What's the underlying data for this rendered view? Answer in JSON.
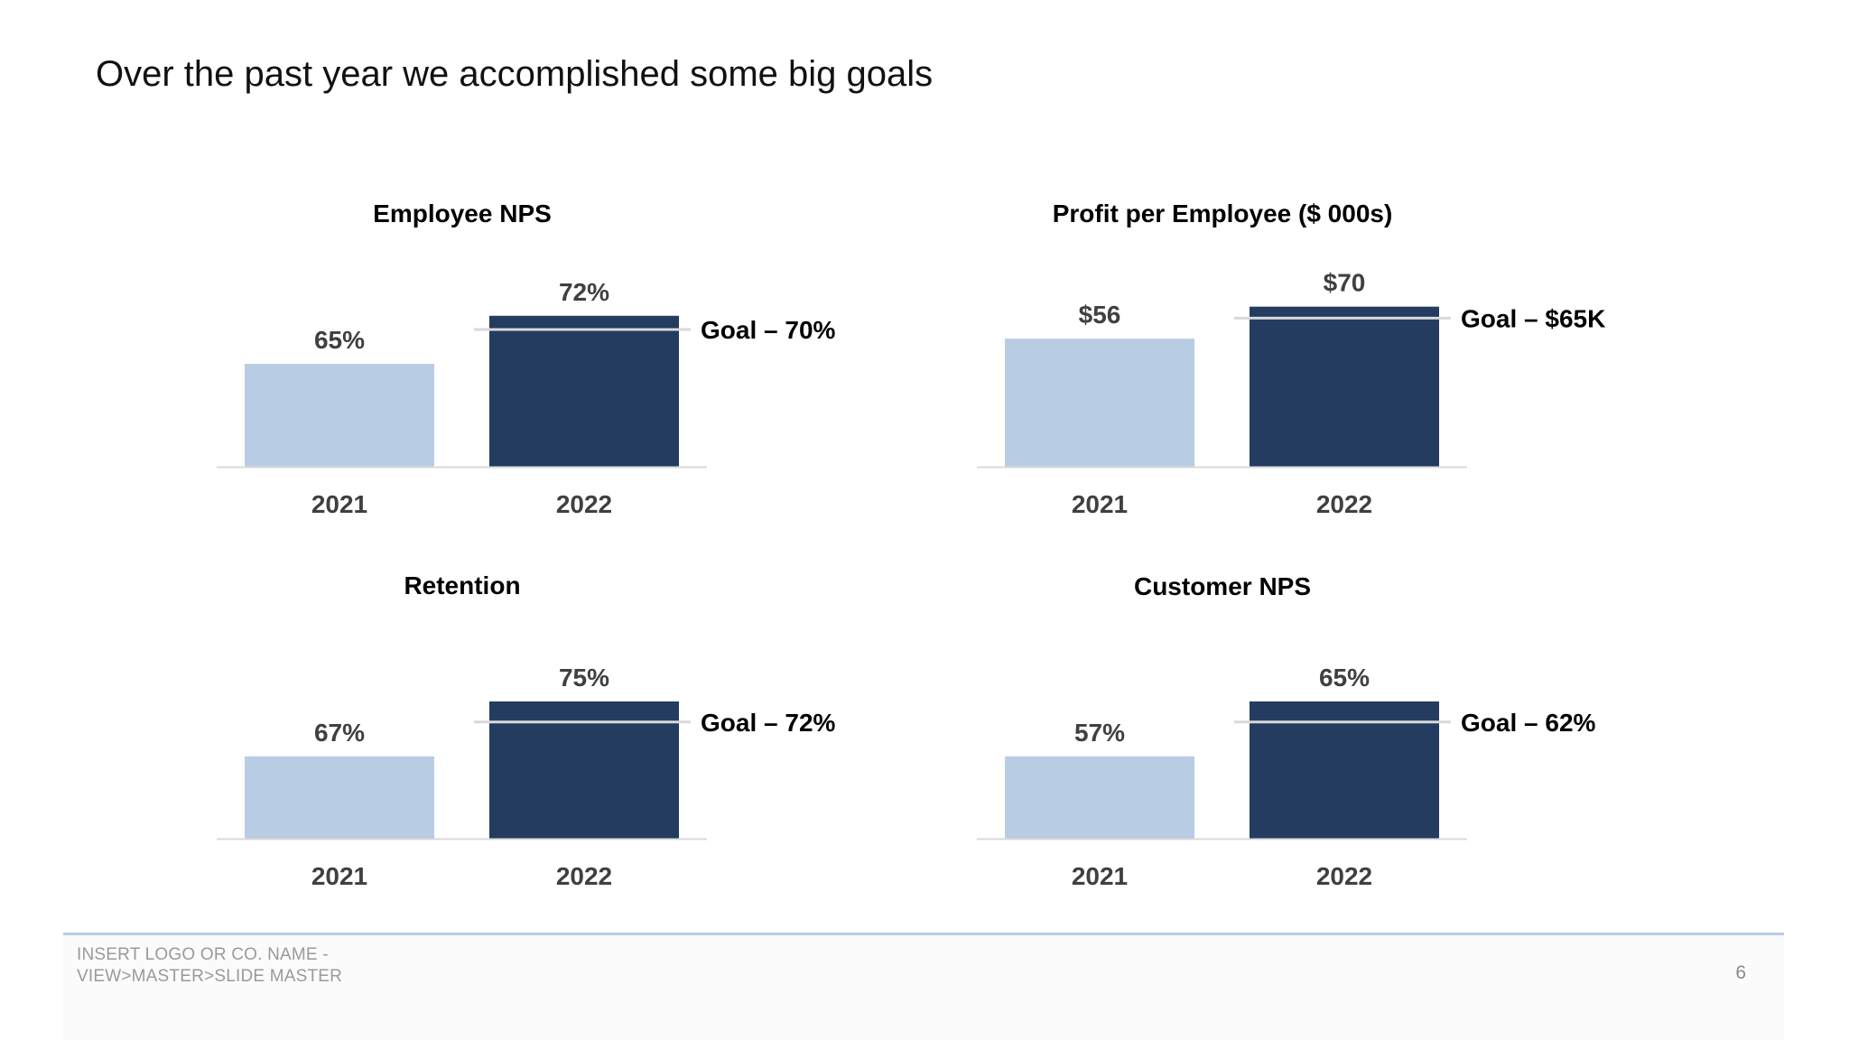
{
  "slide": {
    "title": "Over the past year we accomplished some big goals",
    "footer_line1": "INSERT LOGO OR CO. NAME -",
    "footer_line2": "VIEW>MASTER>SLIDE MASTER",
    "page_number": "6"
  },
  "colors": {
    "bar_2021": "#b8cce4",
    "bar_2022": "#243c60",
    "goal_line": "#d9d9d9",
    "axis_line": "#d9d9d9",
    "footer_rule": "#b8cde4"
  },
  "chart_data": [
    {
      "type": "bar",
      "title": "Employee NPS",
      "categories": [
        "2021",
        "2022"
      ],
      "values": [
        65,
        72
      ],
      "value_labels": [
        "65%",
        "72%"
      ],
      "goal": 70,
      "goal_label": "Goal – 70%",
      "ylim": [
        50,
        75
      ],
      "legend": "none",
      "grid": false
    },
    {
      "type": "bar",
      "title": "Profit per Employee ($ 000s)",
      "categories": [
        "2021",
        "2022"
      ],
      "values": [
        56,
        70
      ],
      "value_labels": [
        "$56",
        "$70"
      ],
      "goal": 65,
      "goal_label": "Goal – $65K",
      "ylim": [
        0,
        75
      ],
      "legend": "none",
      "grid": false
    },
    {
      "type": "bar",
      "title": "Retention",
      "categories": [
        "2021",
        "2022"
      ],
      "values": [
        67,
        75
      ],
      "value_labels": [
        "67%",
        "75%"
      ],
      "goal": 72,
      "goal_label": "Goal – 72%",
      "ylim": [
        55,
        80
      ],
      "legend": "none",
      "grid": false
    },
    {
      "type": "bar",
      "title": "Customer NPS",
      "categories": [
        "2021",
        "2022"
      ],
      "values": [
        57,
        65
      ],
      "value_labels": [
        "57%",
        "65%"
      ],
      "goal": 62,
      "goal_label": "Goal – 62%",
      "ylim": [
        45,
        70
      ],
      "legend": "none",
      "grid": false
    }
  ]
}
